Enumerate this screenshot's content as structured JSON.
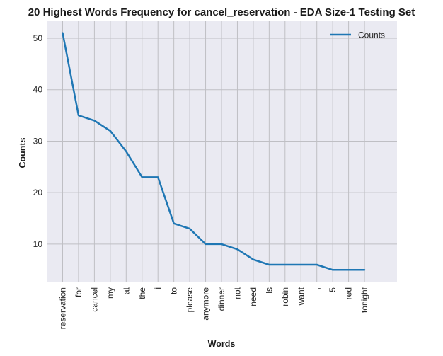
{
  "chart_data": {
    "type": "line",
    "title": "20 Highest Words Frequency for cancel_reservation - EDA Size-1 Testing Set",
    "xlabel": "Words",
    "ylabel": "Counts",
    "categories": [
      "reservation",
      "for",
      "cancel",
      "my",
      "at",
      "the",
      "i",
      "to",
      "please",
      "anymore",
      "dinner",
      "not",
      "need",
      "is",
      "robin",
      "want",
      ",",
      "5",
      "red",
      "tonight"
    ],
    "series": [
      {
        "name": "Counts",
        "values": [
          51,
          35,
          34,
          32,
          28,
          23,
          23,
          14,
          13,
          10,
          10,
          9,
          7,
          6,
          6,
          6,
          6,
          5,
          5,
          5
        ],
        "color": "#1f77b4"
      }
    ],
    "yticks": [
      "10",
      "20",
      "30",
      "40",
      "50"
    ],
    "ylim": [
      2.7,
      53.3
    ],
    "grid": true,
    "legend_position": "top-right",
    "colors": {
      "plot_background": "#eaeaf2",
      "grid": "#bfbfc4"
    }
  }
}
